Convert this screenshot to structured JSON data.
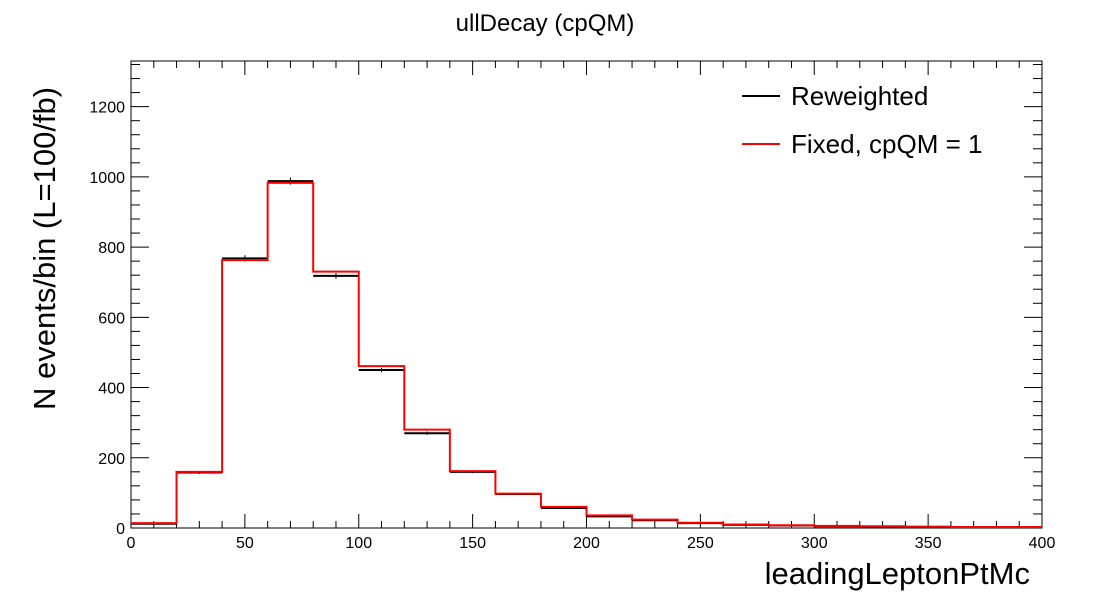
{
  "chart_data": {
    "type": "histogram",
    "title": "ullDecay (cpQM)",
    "xlabel": "leadingLeptonPtMc",
    "ylabel": "N events/bin (L=100/fb)",
    "xlim": [
      0,
      400
    ],
    "ylim": [
      0,
      1330
    ],
    "x_ticks": [
      0,
      50,
      100,
      150,
      200,
      250,
      300,
      350,
      400
    ],
    "y_ticks": [
      0,
      200,
      400,
      600,
      800,
      1000,
      1200
    ],
    "bin_edges": [
      0,
      20,
      40,
      60,
      80,
      100,
      120,
      140,
      160,
      180,
      200,
      220,
      240,
      260,
      280,
      300,
      320,
      340,
      360,
      380,
      400
    ],
    "grid": false,
    "legend_position": "top-right",
    "series": [
      {
        "name": "Reweighted",
        "color": "#000000",
        "style": "points-with-errors",
        "values": [
          12,
          158,
          768,
          988,
          718,
          450,
          270,
          160,
          97,
          57,
          33,
          22,
          14,
          9,
          7,
          5,
          4,
          3,
          3,
          2
        ],
        "errors": [
          1,
          4,
          9,
          10,
          8,
          6,
          5,
          4,
          3,
          2,
          2,
          1,
          1,
          1,
          1,
          1,
          1,
          1,
          1,
          1
        ]
      },
      {
        "name": "Fixed, cpQM = 1",
        "color": "#ff0000",
        "style": "step",
        "values": [
          14,
          160,
          763,
          983,
          730,
          461,
          280,
          162,
          98,
          60,
          36,
          24,
          15,
          10,
          8,
          6,
          5,
          4,
          3,
          3
        ]
      }
    ]
  }
}
